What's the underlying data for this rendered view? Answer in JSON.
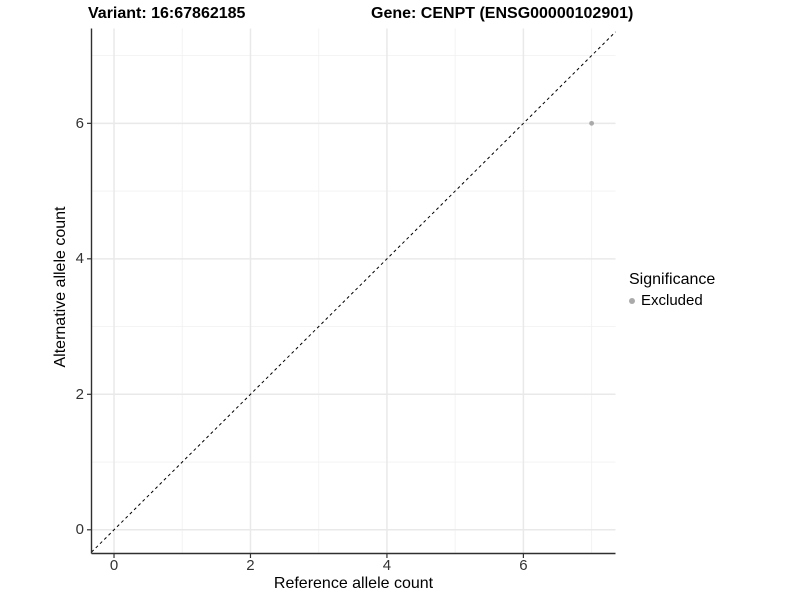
{
  "chart_data": {
    "type": "scatter",
    "title_left": "Variant: 16:67862185",
    "title_right": "Gene: CENPT (ENSG00000102901)",
    "xlabel": "Reference allele count",
    "ylabel": "Alternative allele count",
    "xlim": [
      -0.33,
      7.35
    ],
    "ylim": [
      -0.35,
      7.4
    ],
    "x_tick_values": [
      0,
      2,
      4,
      6
    ],
    "x_tick_labels": [
      "0",
      "2",
      "4",
      "6"
    ],
    "y_tick_values": [
      0,
      2,
      4,
      6
    ],
    "y_tick_labels": [
      "0",
      "2",
      "4",
      "6"
    ],
    "x_minor_ticks": [
      1,
      3,
      5,
      7
    ],
    "y_minor_ticks": [
      1,
      3,
      5,
      7
    ],
    "grid": true,
    "points": [
      {
        "x": 7,
        "y": 6,
        "series": "Excluded"
      }
    ],
    "reference_line": {
      "type": "abline",
      "slope": 1,
      "intercept": 0,
      "linetype": "dashed"
    },
    "legend": {
      "title": "Significance",
      "position": "right",
      "items": [
        {
          "label": "Excluded",
          "color": "#aaaaaa"
        }
      ]
    },
    "colors": {
      "point": "#aaaaaa",
      "diagonal": "#000000",
      "axis_line": "#2f2f2f",
      "grid_major": "#e9e9e9",
      "grid_minor": "#f2f2f2",
      "tick_mark": "#333333",
      "tick_text": "#333333",
      "title_text": "#000000"
    }
  }
}
